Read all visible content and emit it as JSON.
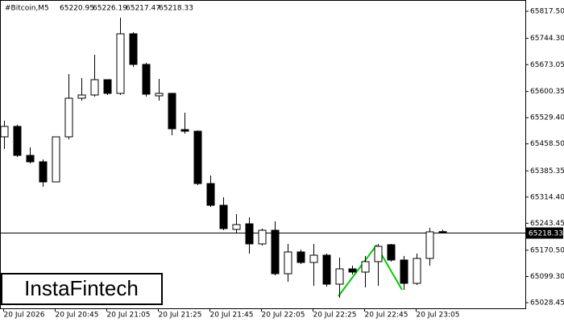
{
  "chart_data": {
    "type": "candlestick",
    "title": "#Bitcoin,M5",
    "watermark": "InstaFintech",
    "categories": [
      "20 Jul 2026",
      null,
      null,
      null,
      "20 Jul 20:45",
      null,
      null,
      null,
      "20 Jul 21:05",
      null,
      null,
      null,
      "20 Jul 21:25",
      null,
      null,
      null,
      "20 Jul 21:45",
      null,
      null,
      null,
      "20 Jul 22:05",
      null,
      null,
      null,
      "20 Jul 22:25",
      null,
      null,
      null,
      "20 Jul 22:45",
      null,
      null,
      null,
      "20 Jul 23:05",
      null,
      null
    ],
    "open": [
      65477.5,
      65505.8,
      65427.3,
      65409.9,
      65355.4,
      65477.5,
      65582.1,
      65590.8,
      65632.2,
      65595.2,
      65756.5,
      65673.6,
      65588.6,
      65595.2,
      65497.1,
      65492.7,
      65351.0,
      65292.2,
      65226.8,
      65242.0,
      65187.6,
      65224.6,
      65106.9,
      65165.8,
      65137.4,
      65157.0,
      65078.6,
      65120.0,
      65111.3,
      65139.6,
      65185.4,
      65144.0,
      65080.8,
      65148.3,
      65220.95
    ],
    "high": [
      65521.0,
      65510.2,
      65449.1,
      65416.4,
      65477.5,
      65647.5,
      65636.6,
      65699.8,
      65632.2,
      65800.0,
      65760.8,
      65678.0,
      65634.4,
      65595.2,
      65542.8,
      65494.9,
      65372.8,
      65314.0,
      65268.2,
      65259.5,
      65229.0,
      65248.6,
      65187.6,
      65172.3,
      65187.6,
      65161.4,
      65150.5,
      65128.7,
      65154.9,
      65187.6,
      65187.6,
      65154.9,
      65161.4,
      65231.1,
      65226.19
    ],
    "low": [
      65444.8,
      65423.0,
      65405.5,
      65342.3,
      65355.4,
      65470.9,
      65575.5,
      65586.4,
      65590.8,
      65590.8,
      65667.1,
      65586.4,
      65575.5,
      65481.8,
      65486.2,
      65346.7,
      65287.8,
      65224.6,
      65215.9,
      65161.4,
      65183.2,
      65102.5,
      65085.1,
      65133.1,
      65074.2,
      65072.0,
      65041.5,
      65104.7,
      65069.9,
      65074.2,
      65139.6,
      65063.3,
      65076.4,
      65128.7,
      65217.47
    ],
    "close": [
      65505.8,
      65427.3,
      65409.9,
      65355.4,
      65477.5,
      65582.1,
      65590.8,
      65632.2,
      65595.2,
      65756.5,
      65673.6,
      65593.0,
      65595.2,
      65499.3,
      65492.7,
      65351.0,
      65292.2,
      65229.0,
      65239.9,
      65187.6,
      65224.6,
      65106.9,
      65165.8,
      65137.4,
      65157.0,
      65078.6,
      65120.0,
      65111.3,
      65139.6,
      65181.0,
      65144.0,
      65080.8,
      65148.3,
      65220.3,
      65218.33
    ],
    "bull_color": "#ffffff",
    "bear_color": "#000000",
    "ylim": [
      65013.2,
      65848.0
    ],
    "yticks": [
      {
        "value": 65817.5,
        "label": "65817.50"
      },
      {
        "value": 65744.3,
        "label": "65744.30"
      },
      65673.05,
      65600.35,
      {
        "value": 65529.4,
        "label": "65529.40"
      },
      {
        "value": 65458.5,
        "label": "65458.50"
      },
      65385.35,
      {
        "value": 65314.4,
        "label": "65314.40"
      },
      65243.45,
      {
        "value": 65170.5,
        "label": "65170.50"
      },
      {
        "value": 65099.3,
        "label": "65099.30"
      },
      65028.45
    ]
  }
}
